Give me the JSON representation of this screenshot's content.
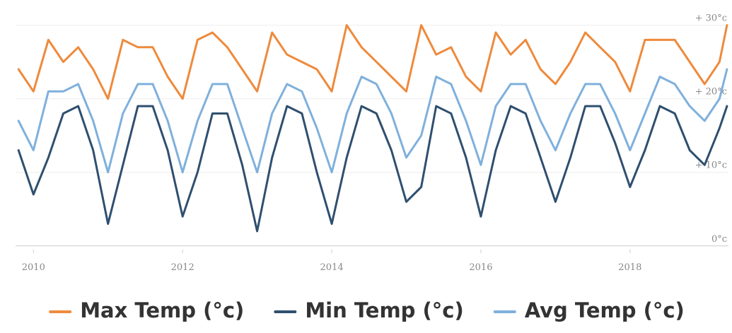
{
  "chart_data": {
    "type": "line",
    "x": [
      2009.8,
      2010.0,
      2010.2,
      2010.4,
      2010.6,
      2010.8,
      2011.0,
      2011.2,
      2011.4,
      2011.6,
      2011.8,
      2012.0,
      2012.2,
      2012.4,
      2012.6,
      2012.8,
      2013.0,
      2013.2,
      2013.4,
      2013.6,
      2013.8,
      2014.0,
      2014.2,
      2014.4,
      2014.6,
      2014.8,
      2015.0,
      2015.2,
      2015.4,
      2015.6,
      2015.8,
      2016.0,
      2016.2,
      2016.4,
      2016.6,
      2016.8,
      2017.0,
      2017.2,
      2017.4,
      2017.6,
      2017.8,
      2018.0,
      2018.2,
      2018.4,
      2018.6,
      2018.8,
      2019.0,
      2019.2,
      2019.3
    ],
    "series": [
      {
        "name": "Max Temp (°c)",
        "color": "#ee8a3c",
        "values": [
          24,
          21,
          28,
          25,
          27,
          24,
          20,
          28,
          27,
          27,
          23,
          20,
          28,
          29,
          27,
          24,
          21,
          29,
          26,
          25,
          24,
          21,
          30,
          27,
          25,
          23,
          21,
          30,
          26,
          27,
          23,
          21,
          29,
          26,
          28,
          24,
          22,
          25,
          29,
          27,
          25,
          21,
          28,
          28,
          28,
          25,
          22,
          25,
          30
        ]
      },
      {
        "name": "Min Temp (°c)",
        "color": "#2f4f6f",
        "values": [
          13,
          7,
          12,
          18,
          19,
          13,
          3,
          11,
          19,
          19,
          13,
          4,
          10,
          18,
          18,
          11,
          2,
          12,
          19,
          18,
          10,
          3,
          12,
          19,
          18,
          13,
          6,
          8,
          19,
          18,
          12,
          4,
          13,
          19,
          18,
          12,
          6,
          12,
          19,
          19,
          14,
          8,
          13,
          19,
          18,
          13,
          11,
          16,
          19
        ]
      },
      {
        "name": "Avg Temp (°c)",
        "color": "#7fb0dc",
        "values": [
          17,
          13,
          21,
          21,
          22,
          17,
          10,
          18,
          22,
          22,
          17,
          10,
          17,
          22,
          22,
          16,
          10,
          18,
          22,
          21,
          16,
          10,
          18,
          23,
          22,
          18,
          12,
          15,
          23,
          22,
          17,
          11,
          19,
          22,
          22,
          17,
          13,
          18,
          22,
          22,
          18,
          13,
          18,
          23,
          22,
          19,
          17,
          20,
          24
        ]
      }
    ],
    "xlim": [
      2009.76,
      2019.32
    ],
    "xticks": [
      2010,
      2012,
      2014,
      2016,
      2018
    ],
    "ylim": [
      -0.5,
      31.5
    ],
    "yticks": [
      {
        "value": 0,
        "label": "0°c"
      },
      {
        "value": 10,
        "label": "+ 10°c"
      },
      {
        "value": 20,
        "label": "+ 20°c"
      },
      {
        "value": 30,
        "label": "+ 30°c"
      }
    ],
    "grid": true
  }
}
